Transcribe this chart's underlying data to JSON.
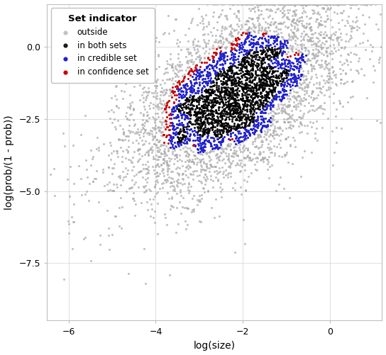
{
  "xlabel": "log(size)",
  "ylabel": "log(prob/(1 - prob))",
  "xlim": [
    -6.5,
    1.2
  ],
  "ylim": [
    -9.5,
    1.5
  ],
  "xticks": [
    -6,
    -4,
    -2,
    0
  ],
  "yticks": [
    0.0,
    -2.5,
    -5.0,
    -7.5
  ],
  "legend_title": "Set indicator",
  "legend_labels": [
    "outside",
    "in confidence set",
    "in credible set",
    "in both sets"
  ],
  "colors": {
    "outside": "#aaaaaa",
    "confidence": "#cc0000",
    "credible": "#2222cc",
    "both": "#000000"
  },
  "marker_size": 5,
  "seed": 42,
  "n_samples": 5000,
  "background_color": "#ffffff",
  "grid_color": "#d9d9d9"
}
